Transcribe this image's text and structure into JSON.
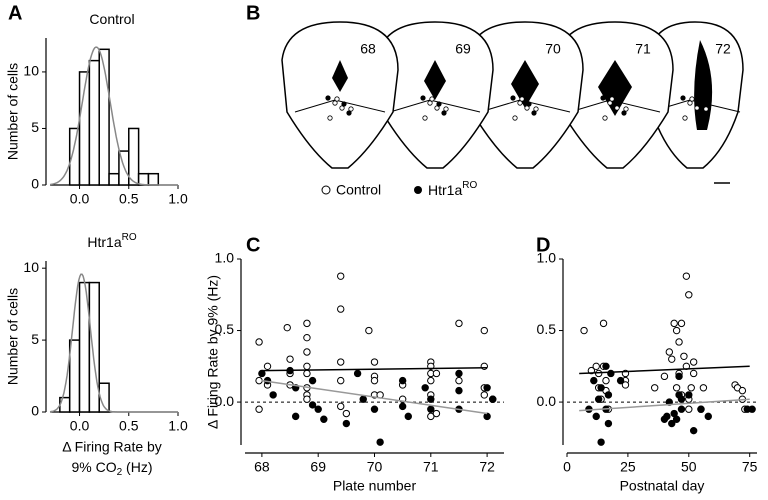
{
  "chart_data": [
    {
      "type": "histogram",
      "panel": "A",
      "title": "Control",
      "y_label": "Number of cells",
      "bins": [
        -0.1,
        0,
        0.1,
        0.2,
        0.3,
        0.4,
        0.5,
        0.6,
        0.7,
        0.8
      ],
      "counts": [
        5,
        10,
        11,
        12,
        1,
        3,
        5,
        1,
        1
      ],
      "fit": {
        "mean": 0.17,
        "sd": 0.14,
        "peak": 12.2,
        "color": "#888888"
      },
      "xlim": [
        -0.3,
        1.0
      ],
      "xticks": [
        {
          "value": 0,
          "label": "0.0"
        },
        {
          "value": 0.5,
          "label": "0.5"
        },
        {
          "value": 1,
          "label": "1.0"
        }
      ],
      "ylim": [
        0,
        13
      ],
      "yticks": [
        0,
        5,
        10
      ]
    },
    {
      "type": "histogram",
      "title": "Htr1a",
      "title_sup": "RO",
      "y_label": "Number of cells",
      "x_label_lines": [
        "Δ Firing Rate by",
        "9% CO"
      ],
      "x_label_sub": "2",
      "x_label_end": " (Hz)",
      "bins": [
        -0.2,
        -0.1,
        0,
        0.1,
        0.2,
        0.3
      ],
      "counts": [
        1,
        5,
        9,
        9,
        2
      ],
      "fit": {
        "mean": 0.02,
        "sd": 0.09,
        "peak": 9.6,
        "color": "#888888"
      },
      "xlim": [
        -0.3,
        1.0
      ],
      "xticks": [
        {
          "value": 0,
          "label": "0.0"
        },
        {
          "value": 0.5,
          "label": "0.5"
        },
        {
          "value": 1,
          "label": "1.0"
        }
      ],
      "ylim": [
        0,
        10.5
      ],
      "yticks": [
        0,
        5,
        10
      ]
    },
    {
      "type": "scatter",
      "panel": "C",
      "x_label": "Plate number",
      "y_label": "Δ Firing Rate by 9% (Hz)",
      "xlim": [
        67.7,
        72.3
      ],
      "xticks": [
        68,
        69,
        70,
        71,
        72
      ],
      "ylim": [
        -0.3,
        1.0
      ],
      "yticks": [
        {
          "value": 0,
          "label": "0.0"
        },
        {
          "value": 0.5,
          "label": "0.5"
        },
        {
          "value": 1,
          "label": "1.0"
        }
      ],
      "reference_line": 0,
      "series": [
        {
          "filled": false,
          "color": "#000000",
          "x": [
            67.95,
            67.95,
            67.95,
            68.1,
            68.1,
            68.45,
            68.5,
            68.5,
            68.5,
            68.8,
            68.8,
            68.8,
            68.8,
            68.8,
            68.8,
            68.8,
            68.8,
            69.4,
            69.4,
            69.4,
            69.4,
            69.4,
            69.5,
            69.9,
            70,
            70,
            70,
            70,
            70.1,
            70.5,
            70.5,
            71,
            71,
            71,
            71,
            71,
            71,
            71.1,
            71.1,
            71.5,
            71.5,
            71.95,
            71.95,
            71.95,
            71.95,
            72.1
          ],
          "values": [
            0.42,
            0.15,
            -0.05,
            0.25,
            0.12,
            0.52,
            0.3,
            0.2,
            0.12,
            0.55,
            0.45,
            0.35,
            0.25,
            0.2,
            0.1,
            0.05,
            0.02,
            0.88,
            0.65,
            0.28,
            0.15,
            -0.03,
            -0.08,
            0.5,
            0.28,
            0.18,
            0.15,
            0.05,
            0.05,
            0.12,
            0.02,
            0.28,
            0.25,
            0.2,
            0.15,
            0.05,
            -0.1,
            0.2,
            -0.08,
            0.55,
            0.15,
            0.5,
            0.25,
            0.1,
            0.05,
            0.02
          ]
        },
        {
          "filled": true,
          "color": "#000000",
          "x": [
            68,
            68.1,
            68.2,
            68.5,
            68.6,
            68.6,
            68.9,
            68.9,
            69,
            69.1,
            69.5,
            69.7,
            69.8,
            70,
            70.1,
            70.5,
            70.5,
            70.6,
            70.9,
            71,
            71,
            71.5,
            71.5,
            71.5,
            72,
            72,
            72.1
          ],
          "values": [
            0.2,
            0.15,
            0.05,
            0.22,
            0.1,
            -0.1,
            0.15,
            -0.02,
            -0.05,
            -0.12,
            -0.15,
            0.2,
            0.02,
            -0.05,
            -0.28,
            0.15,
            -0.03,
            -0.1,
            0.1,
            0.02,
            -0.05,
            0.08,
            -0.05,
            0.2,
            0.1,
            -0.1,
            0.02
          ]
        }
      ],
      "fits": [
        {
          "x": [
            68,
            72
          ],
          "values": [
            0.22,
            0.24
          ],
          "color": "#000000"
        },
        {
          "x": [
            68,
            72
          ],
          "values": [
            0.15,
            -0.08
          ],
          "color": "#999999"
        }
      ]
    },
    {
      "type": "scatter",
      "panel": "D",
      "x_label": "Postnatal day",
      "xlim": [
        0,
        78
      ],
      "xticks": [
        0,
        25,
        50,
        75
      ],
      "ylim": [
        -0.3,
        1.0
      ],
      "yticks": [
        {
          "value": 0,
          "label": "0.0"
        },
        {
          "value": 0.5,
          "label": "0.5"
        },
        {
          "value": 1,
          "label": "1.0"
        }
      ],
      "reference_line": 0,
      "series": [
        {
          "filled": false,
          "color": "#000000",
          "x": [
            7,
            10,
            12,
            13,
            13,
            14,
            15,
            15,
            16,
            16,
            17,
            24,
            24,
            24,
            36,
            40,
            42,
            43,
            44,
            45,
            45,
            46,
            46,
            47,
            47,
            48,
            49,
            49,
            50,
            50,
            50,
            51,
            52,
            52,
            55,
            56,
            69,
            70,
            72,
            72,
            73
          ],
          "values": [
            0.5,
            0.22,
            0.25,
            0.2,
            0.1,
            0.02,
            0.55,
            0.25,
            0.15,
            0.08,
            -0.05,
            0.2,
            0.15,
            0.12,
            0.1,
            0.18,
            0.35,
            0.3,
            0.55,
            0.5,
            0.1,
            0.42,
            0.2,
            0.55,
            0.05,
            0.32,
            0.88,
            0.25,
            0.75,
            0.02,
            -0.05,
            0.1,
            0.2,
            0.28,
            -0.05,
            0.1,
            0.12,
            0.1,
            0.08,
            0.02,
            -0.05
          ]
        },
        {
          "filled": true,
          "color": "#000000",
          "x": [
            9,
            11,
            12,
            13,
            14,
            14,
            16,
            16,
            17,
            17,
            18,
            22,
            40,
            41,
            42,
            43,
            44,
            45,
            46,
            46,
            47,
            47,
            50,
            52,
            55,
            58,
            74,
            76
          ],
          "values": [
            -0.05,
            0.15,
            -0.1,
            0.02,
            -0.28,
            0.1,
            -0.05,
            0.25,
            -0.15,
            0.05,
            0.2,
            0.15,
            -0.12,
            -0.1,
            0,
            -0.15,
            -0.08,
            -0.12,
            0.18,
            0.05,
            -0.05,
            0.02,
            0.05,
            -0.2,
            -0.05,
            -0.1,
            -0.05,
            -0.05
          ]
        }
      ],
      "fits": [
        {
          "x": [
            5,
            75
          ],
          "values": [
            0.2,
            0.25
          ],
          "color": "#000000"
        },
        {
          "x": [
            5,
            75
          ],
          "values": [
            -0.06,
            0.02
          ],
          "color": "#999999"
        }
      ]
    }
  ],
  "diagram": {
    "panel": "B",
    "slices": [
      "68",
      "69",
      "70",
      "71",
      "72"
    ],
    "legend": [
      "Control",
      "Htr1a"
    ],
    "legend_sup": "RO"
  }
}
